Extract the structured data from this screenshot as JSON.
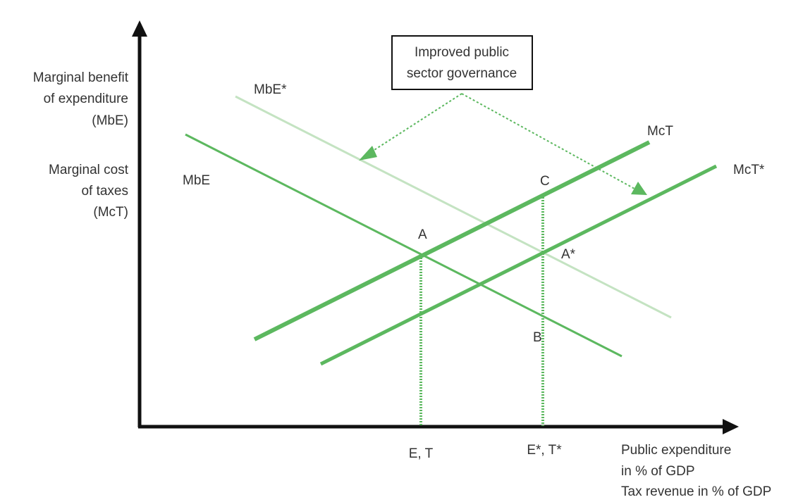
{
  "y_axis_label_1": [
    "Marginal benefit",
    "of expenditure",
    "(MbE)"
  ],
  "y_axis_label_2": [
    "Marginal cost",
    "of taxes",
    "(McT)"
  ],
  "x_axis_label": [
    "Public expenditure",
    "in % of GDP",
    "Tax revenue in % of GDP"
  ],
  "callout": [
    "Improved public",
    "sector governance"
  ],
  "curves": {
    "mbe_star": "MbE*",
    "mbe": "MbE",
    "mct": "McT",
    "mct_star": "McT*"
  },
  "points": {
    "a": "A",
    "a_star": "A*",
    "b": "B",
    "c": "C"
  },
  "x_ticks": {
    "et": "E, T",
    "et_star": "E*, T*"
  },
  "colors": {
    "axis": "#111111",
    "mbe": "#5cb85f",
    "mbe_star": "#c4e3c2",
    "mct": "#5cb85f",
    "mct_star": "#5cb85f",
    "dotted": "#5cb85f",
    "text": "#333333"
  }
}
